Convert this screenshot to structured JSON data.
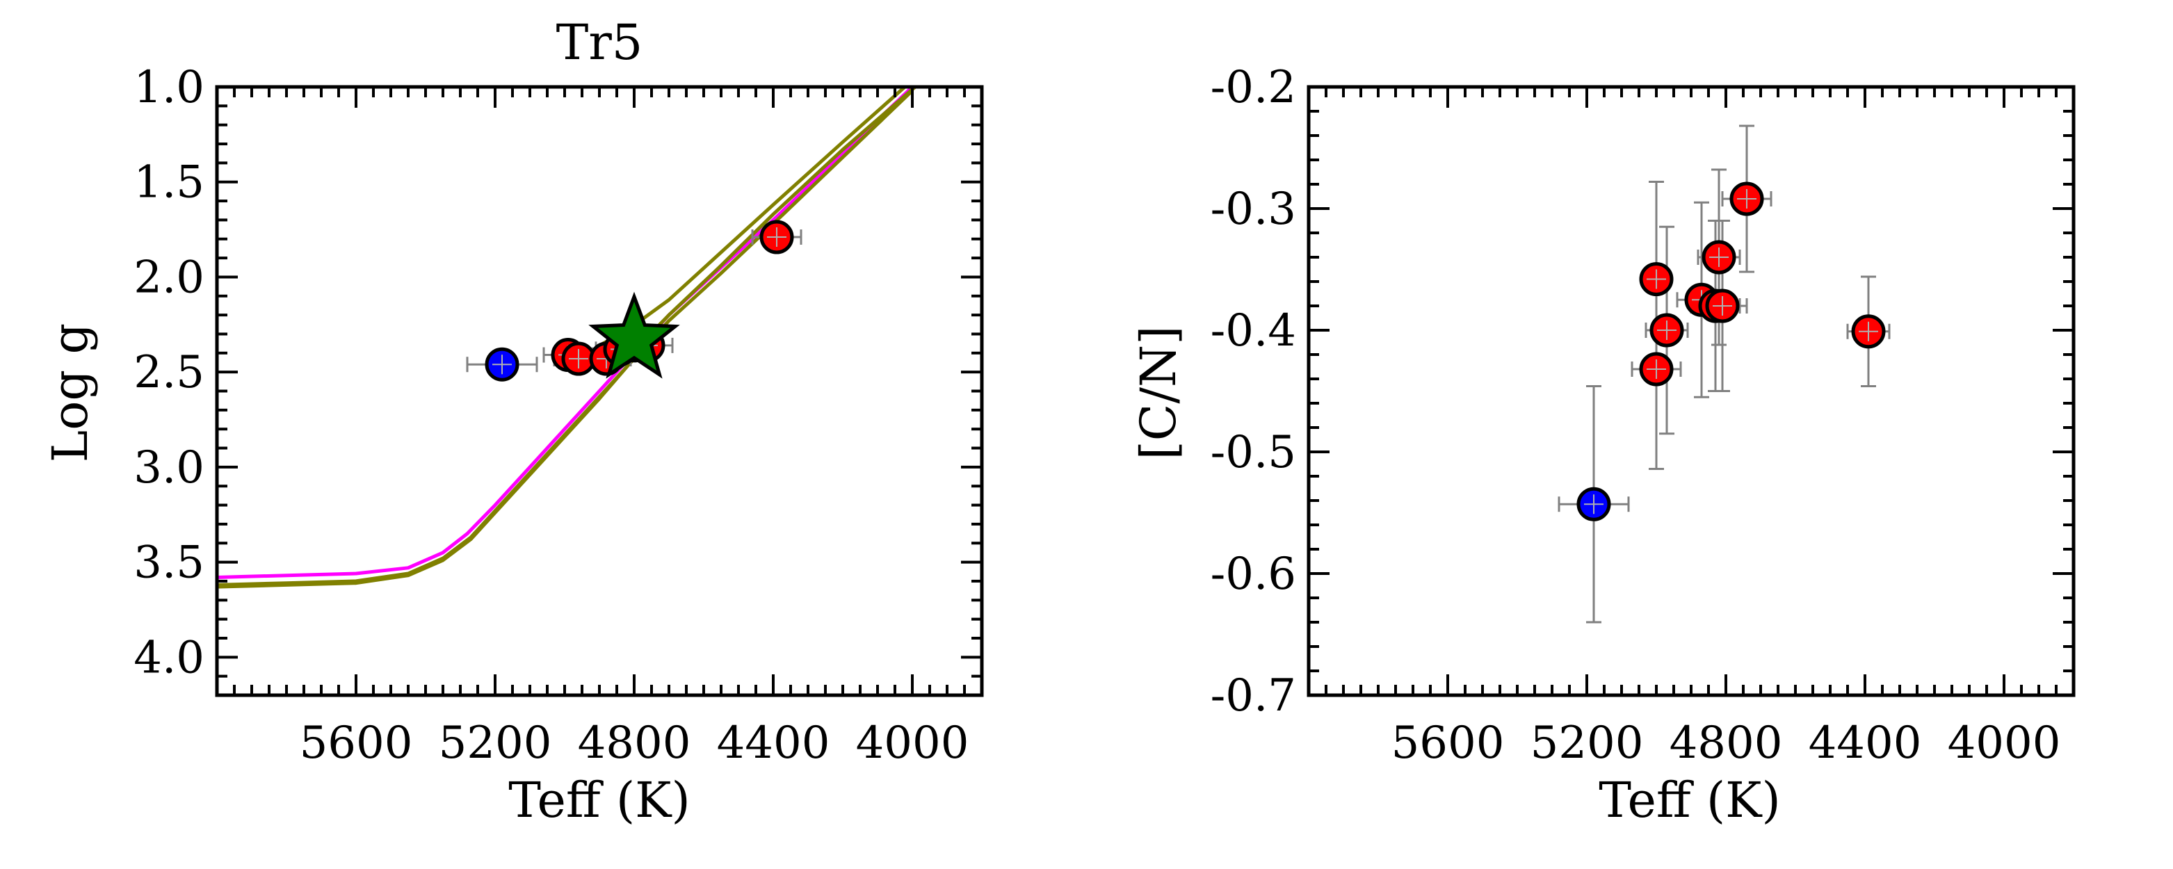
{
  "chart_data": [
    {
      "type": "scatter",
      "title": "Tr5",
      "xlabel": "Teff (K)",
      "ylabel": "Log g",
      "xlim": [
        6000,
        3800
      ],
      "ylim": [
        4.2,
        1.0
      ],
      "x_ticks": [
        5600,
        5200,
        4800,
        4400,
        4000
      ],
      "x_tick_labels": [
        "5600",
        "5200",
        "4800",
        "4400",
        "4000"
      ],
      "y_ticks": [
        1.0,
        1.5,
        2.0,
        2.5,
        3.0,
        3.5,
        4.0
      ],
      "y_tick_labels": [
        "1.0",
        "1.5",
        "2.0",
        "2.5",
        "3.0",
        "3.5",
        "4.0"
      ],
      "grid": false,
      "series": [
        {
          "color": "#ff0000",
          "points": [
            {
              "x": 4990,
              "y": 2.41,
              "xerr": 70,
              "yerr": 0.04
            },
            {
              "x": 4960,
              "y": 2.43,
              "xerr": 70,
              "yerr": 0.04
            },
            {
              "x": 4880,
              "y": 2.43,
              "xerr": 70,
              "yerr": 0.04
            },
            {
              "x": 4840,
              "y": 2.38,
              "xerr": 70,
              "yerr": 0.04
            },
            {
              "x": 4800,
              "y": 2.36,
              "xerr": 70,
              "yerr": 0.04
            },
            {
              "x": 4760,
              "y": 2.36,
              "xerr": 70,
              "yerr": 0.04
            },
            {
              "x": 4390,
              "y": 1.79,
              "xerr": 70,
              "yerr": 0.04
            }
          ]
        },
        {
          "color": "#0000ff",
          "points": [
            {
              "x": 5180,
              "y": 2.46,
              "xerr": 100,
              "yerr": 0.04
            }
          ]
        },
        {
          "color": "#008000",
          "marker": "star",
          "points": [
            {
              "x": 4800,
              "y": 2.33
            }
          ]
        }
      ],
      "isochrones": [
        {
          "color": "#ff00ff",
          "points": [
            [
              6000,
              3.58
            ],
            [
              5800,
              3.57
            ],
            [
              5600,
              3.56
            ],
            [
              5450,
              3.53
            ],
            [
              5350,
              3.45
            ],
            [
              5280,
              3.35
            ],
            [
              5200,
              3.2
            ],
            [
              5100,
              3.0
            ],
            [
              5000,
              2.8
            ],
            [
              4900,
              2.6
            ],
            [
              4800,
              2.4
            ],
            [
              4700,
              2.2
            ],
            [
              4550,
              1.95
            ],
            [
              4400,
              1.7
            ],
            [
              4200,
              1.35
            ],
            [
              4000,
              1.0
            ]
          ]
        },
        {
          "color": "#808000",
          "points": [
            [
              6000,
              3.62
            ],
            [
              5800,
              3.61
            ],
            [
              5600,
              3.6
            ],
            [
              5450,
              3.56
            ],
            [
              5350,
              3.48
            ],
            [
              5270,
              3.37
            ],
            [
              5200,
              3.23
            ],
            [
              5100,
              3.03
            ],
            [
              5000,
              2.83
            ],
            [
              4900,
              2.63
            ],
            [
              4800,
              2.43
            ],
            [
              4700,
              2.23
            ],
            [
              4550,
              1.98
            ],
            [
              4400,
              1.72
            ],
            [
              4200,
              1.37
            ],
            [
              4000,
              1.02
            ]
          ]
        },
        {
          "color": "#808000",
          "points": [
            [
              6000,
              3.63
            ],
            [
              5800,
              3.62
            ],
            [
              5600,
              3.61
            ],
            [
              5450,
              3.57
            ],
            [
              5350,
              3.49
            ],
            [
              5270,
              3.38
            ],
            [
              5200,
              3.24
            ],
            [
              5100,
              3.04
            ],
            [
              5000,
              2.84
            ],
            [
              4900,
              2.64
            ],
            [
              4820,
              2.47
            ],
            [
              4780,
              2.35
            ],
            [
              4700,
              2.2
            ],
            [
              4550,
              1.94
            ],
            [
              4400,
              1.67
            ],
            [
              4200,
              1.33
            ],
            [
              3960,
              0.95
            ]
          ]
        },
        {
          "color": "#808000",
          "points": [
            [
              4850,
              2.43
            ],
            [
              4900,
              2.36
            ],
            [
              4820,
              2.28
            ],
            [
              4700,
              2.12
            ],
            [
              4550,
              1.87
            ],
            [
              4400,
              1.62
            ],
            [
              4200,
              1.29
            ],
            [
              3960,
              0.9
            ]
          ]
        }
      ]
    },
    {
      "type": "scatter",
      "title": "",
      "xlabel": "Teff (K)",
      "ylabel": "[C/N]",
      "xlim": [
        6000,
        3800
      ],
      "ylim": [
        -0.7,
        -0.2
      ],
      "x_ticks": [
        5600,
        5200,
        4800,
        4400,
        4000
      ],
      "x_tick_labels": [
        "5600",
        "5200",
        "4800",
        "4400",
        "4000"
      ],
      "y_ticks": [
        -0.2,
        -0.3,
        -0.4,
        -0.5,
        -0.6,
        -0.7
      ],
      "y_tick_labels": [
        "-0.2",
        "-0.3",
        "-0.4",
        "-0.5",
        "-0.6",
        "-0.7"
      ],
      "grid": false,
      "series": [
        {
          "color": "#ff0000",
          "points": [
            {
              "x": 5000,
              "y": -0.358,
              "xerr": 40,
              "yerr": 0.08
            },
            {
              "x": 4970,
              "y": -0.4,
              "xerr": 60,
              "yerr": 0.085
            },
            {
              "x": 5000,
              "y": -0.432,
              "xerr": 70,
              "yerr": 0.082
            },
            {
              "x": 4870,
              "y": -0.375,
              "xerr": 70,
              "yerr": 0.08
            },
            {
              "x": 4830,
              "y": -0.38,
              "xerr": 70,
              "yerr": 0.07
            },
            {
              "x": 4810,
              "y": -0.38,
              "xerr": 70,
              "yerr": 0.07
            },
            {
              "x": 4820,
              "y": -0.34,
              "xerr": 60,
              "yerr": 0.072
            },
            {
              "x": 4740,
              "y": -0.292,
              "xerr": 70,
              "yerr": 0.06
            },
            {
              "x": 4390,
              "y": -0.401,
              "xerr": 60,
              "yerr": 0.045
            }
          ]
        },
        {
          "color": "#0000ff",
          "points": [
            {
              "x": 5180,
              "y": -0.543,
              "xerr": 100,
              "yerr": 0.097
            }
          ]
        }
      ]
    }
  ]
}
